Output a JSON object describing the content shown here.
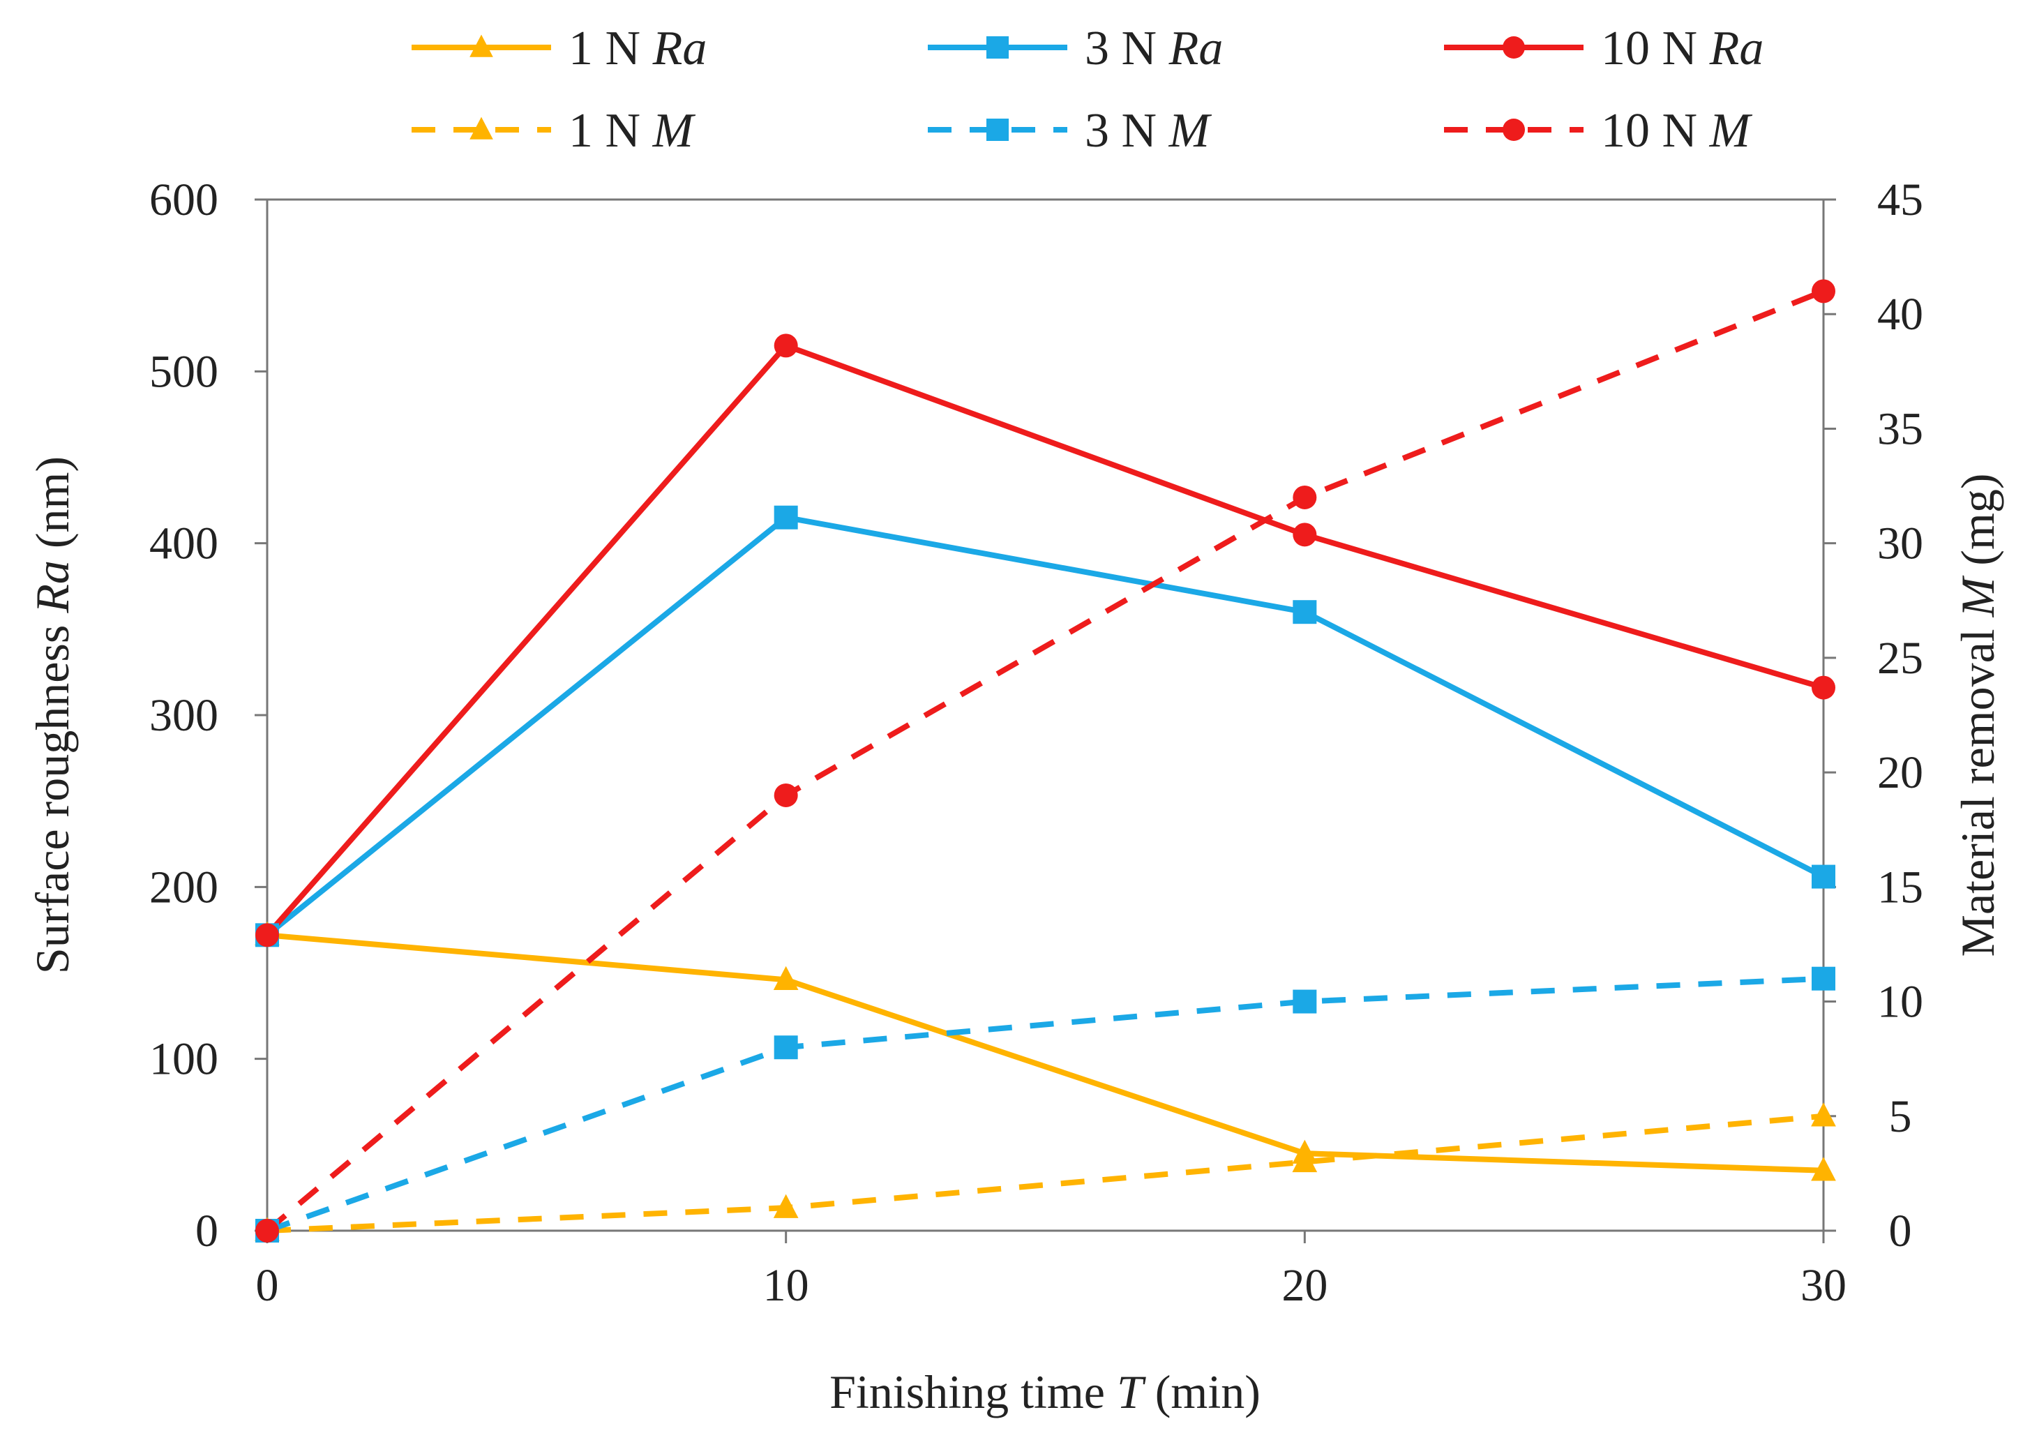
{
  "chart_data": {
    "type": "line",
    "title": "",
    "xlabel": {
      "prefix": "Finishing time ",
      "var": "T",
      "suffix": " (min)"
    },
    "ylabel_left": {
      "prefix": "Surface roughness ",
      "var": "Ra",
      "suffix": " (nm)"
    },
    "ylabel_right": {
      "prefix": "Material removal ",
      "var": "M",
      "suffix": " (mg)"
    },
    "x": [
      0,
      10,
      20,
      30
    ],
    "xlim": [
      0,
      30
    ],
    "x_ticks": [
      0,
      10,
      20,
      30
    ],
    "ylim_left": [
      0,
      600
    ],
    "y_ticks_left": [
      0,
      100,
      200,
      300,
      400,
      500,
      600
    ],
    "ylim_right": [
      0,
      45
    ],
    "y_ticks_right": [
      0,
      5,
      10,
      15,
      20,
      25,
      30,
      35,
      40,
      45
    ],
    "grid": false,
    "legend_position": "top",
    "series": [
      {
        "id": "ra-1n",
        "name": "1 N",
        "var": "Ra",
        "axis": "left",
        "style": "solid",
        "marker": "triangle",
        "color": "#FFB300",
        "values": [
          172,
          146,
          45,
          35
        ]
      },
      {
        "id": "ra-3n",
        "name": "3 N",
        "var": "Ra",
        "axis": "left",
        "style": "solid",
        "marker": "square",
        "color": "#1BA8E6",
        "values": [
          172,
          415,
          360,
          206
        ]
      },
      {
        "id": "ra-10n",
        "name": "10 N",
        "var": "Ra",
        "axis": "left",
        "style": "solid",
        "marker": "circle",
        "color": "#EE1C1C",
        "values": [
          172,
          515,
          405,
          316
        ]
      },
      {
        "id": "m-1n",
        "name": "1 N",
        "var": "M",
        "axis": "right",
        "style": "dashed",
        "marker": "triangle",
        "color": "#FFB300",
        "values": [
          0,
          1,
          3,
          5
        ]
      },
      {
        "id": "m-3n",
        "name": "3 N",
        "var": "M",
        "axis": "right",
        "style": "dashed",
        "marker": "square",
        "color": "#1BA8E6",
        "values": [
          0,
          8,
          10,
          11
        ]
      },
      {
        "id": "m-10n",
        "name": "10 N",
        "var": "M",
        "axis": "right",
        "style": "dashed",
        "marker": "circle",
        "color": "#EE1C1C",
        "values": [
          0,
          19,
          32,
          41
        ]
      }
    ]
  }
}
